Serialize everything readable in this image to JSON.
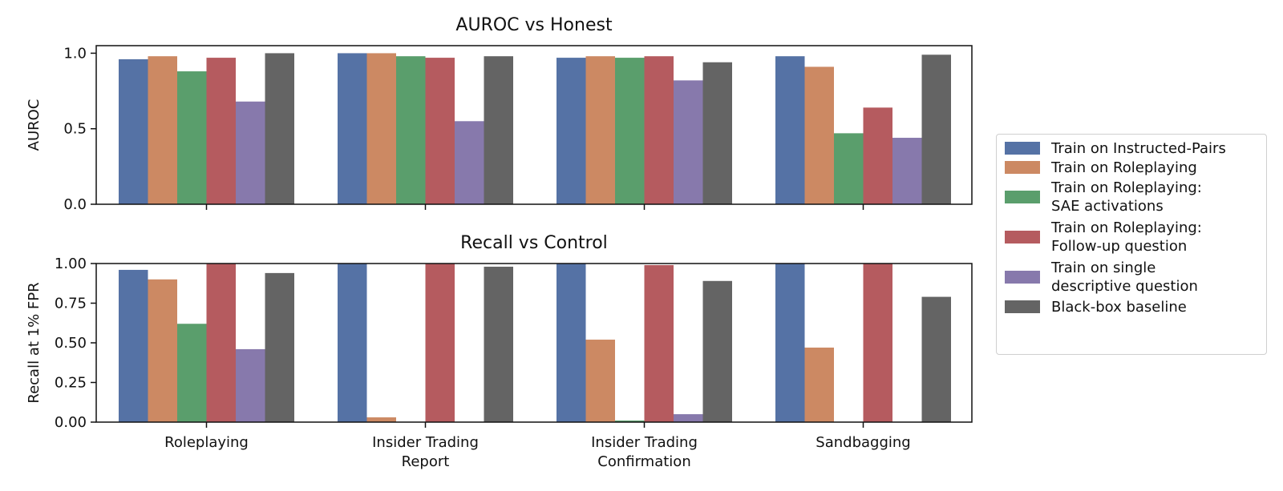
{
  "chart_data": [
    {
      "type": "bar",
      "title": "AUROC vs Honest",
      "ylabel": "AUROC",
      "ylim": [
        0,
        1.05
      ],
      "yticks": [
        "0.0",
        "0.5",
        "1.0"
      ],
      "ytick_values": [
        0.0,
        0.5,
        1.0
      ],
      "categories": [
        "Roleplaying",
        "Insider Trading Report",
        "Insider Trading Confirmation",
        "Sandbagging"
      ],
      "series": [
        {
          "name": "Train on Instructed-Pairs",
          "values": [
            0.96,
            1.0,
            0.97,
            0.98
          ]
        },
        {
          "name": "Train on Roleplaying",
          "values": [
            0.98,
            1.0,
            0.98,
            0.91
          ]
        },
        {
          "name": "Train on Roleplaying: SAE activations",
          "values": [
            0.88,
            0.98,
            0.97,
            0.47
          ]
        },
        {
          "name": "Train on Roleplaying: Follow-up question",
          "values": [
            0.97,
            0.97,
            0.98,
            0.64
          ]
        },
        {
          "name": "Train on single descriptive question",
          "values": [
            0.68,
            0.55,
            0.82,
            0.44
          ]
        },
        {
          "name": "Black-box baseline",
          "values": [
            1.0,
            0.98,
            0.94,
            0.99
          ]
        }
      ]
    },
    {
      "type": "bar",
      "title": "Recall vs Control",
      "ylabel": "Recall at 1% FPR",
      "ylim": [
        0,
        1.0
      ],
      "yticks": [
        "0.00",
        "0.25",
        "0.50",
        "0.75",
        "1.00"
      ],
      "ytick_values": [
        0.0,
        0.25,
        0.5,
        0.75,
        1.0
      ],
      "categories": [
        "Roleplaying",
        "Insider Trading Report",
        "Insider Trading Confirmation",
        "Sandbagging"
      ],
      "category_labels": [
        "Roleplaying",
        "Insider Trading\nReport",
        "Insider Trading\nConfirmation",
        "Sandbagging"
      ],
      "series": [
        {
          "name": "Train on Instructed-Pairs",
          "values": [
            0.96,
            1.0,
            1.0,
            1.0
          ]
        },
        {
          "name": "Train on Roleplaying",
          "values": [
            0.9,
            0.03,
            0.52,
            0.47
          ]
        },
        {
          "name": "Train on Roleplaying: SAE activations",
          "values": [
            0.62,
            0.0,
            0.01,
            0.0
          ]
        },
        {
          "name": "Train on Roleplaying: Follow-up question",
          "values": [
            1.0,
            1.0,
            0.99,
            1.0
          ]
        },
        {
          "name": "Train on single descriptive question",
          "values": [
            0.46,
            0.0,
            0.05,
            0.0
          ]
        },
        {
          "name": "Black-box baseline",
          "values": [
            0.94,
            0.98,
            0.89,
            0.79
          ]
        }
      ]
    }
  ],
  "legend": {
    "items": [
      {
        "label": "Train on Instructed-Pairs",
        "color": "#5572a5"
      },
      {
        "label": "Train on Roleplaying",
        "color": "#cc8963"
      },
      {
        "label": "Train on Roleplaying:\nSAE activations",
        "color": "#5a9e6c"
      },
      {
        "label": "Train on Roleplaying:\nFollow-up question",
        "color": "#b55b5f"
      },
      {
        "label": "Train on single\ndescriptive question",
        "color": "#8779ac"
      },
      {
        "label": "Black-box baseline",
        "color": "#646464"
      }
    ]
  }
}
